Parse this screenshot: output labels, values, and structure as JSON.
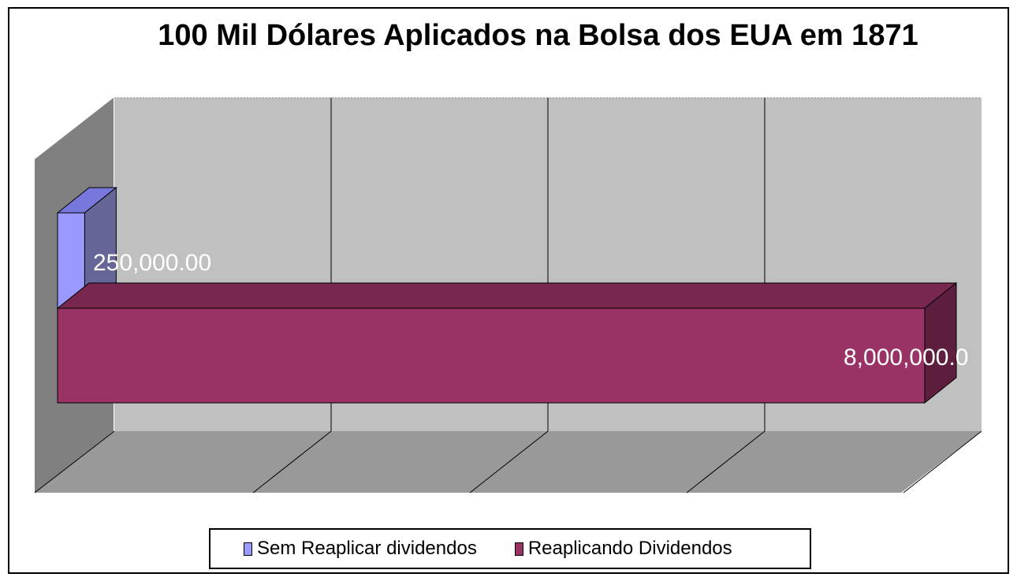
{
  "chart_data": {
    "type": "bar",
    "orientation": "horizontal",
    "three_d": true,
    "title": "100 Mil Dólares Aplicados na Bolsa dos EUA em 1871",
    "categories": [
      ""
    ],
    "series": [
      {
        "name": "Sem Reaplicar dividendos",
        "values": [
          250000
        ],
        "label": "250,000.00",
        "color": "#9999FF",
        "top_color": "#7777DD",
        "side_color": "#666699"
      },
      {
        "name": "Reaplicando Dividendos",
        "values": [
          8000000
        ],
        "label": "8,000,000.0",
        "color": "#993366",
        "top_color": "#772750",
        "side_color": "#5E1F3F"
      }
    ],
    "xlim": [
      0,
      8000000
    ],
    "grid": true,
    "legend_position": "bottom",
    "colors": {
      "wall": "#C0C0C0",
      "left_wall": "#808080",
      "floor": "#999999",
      "gridline": "#000000"
    }
  }
}
